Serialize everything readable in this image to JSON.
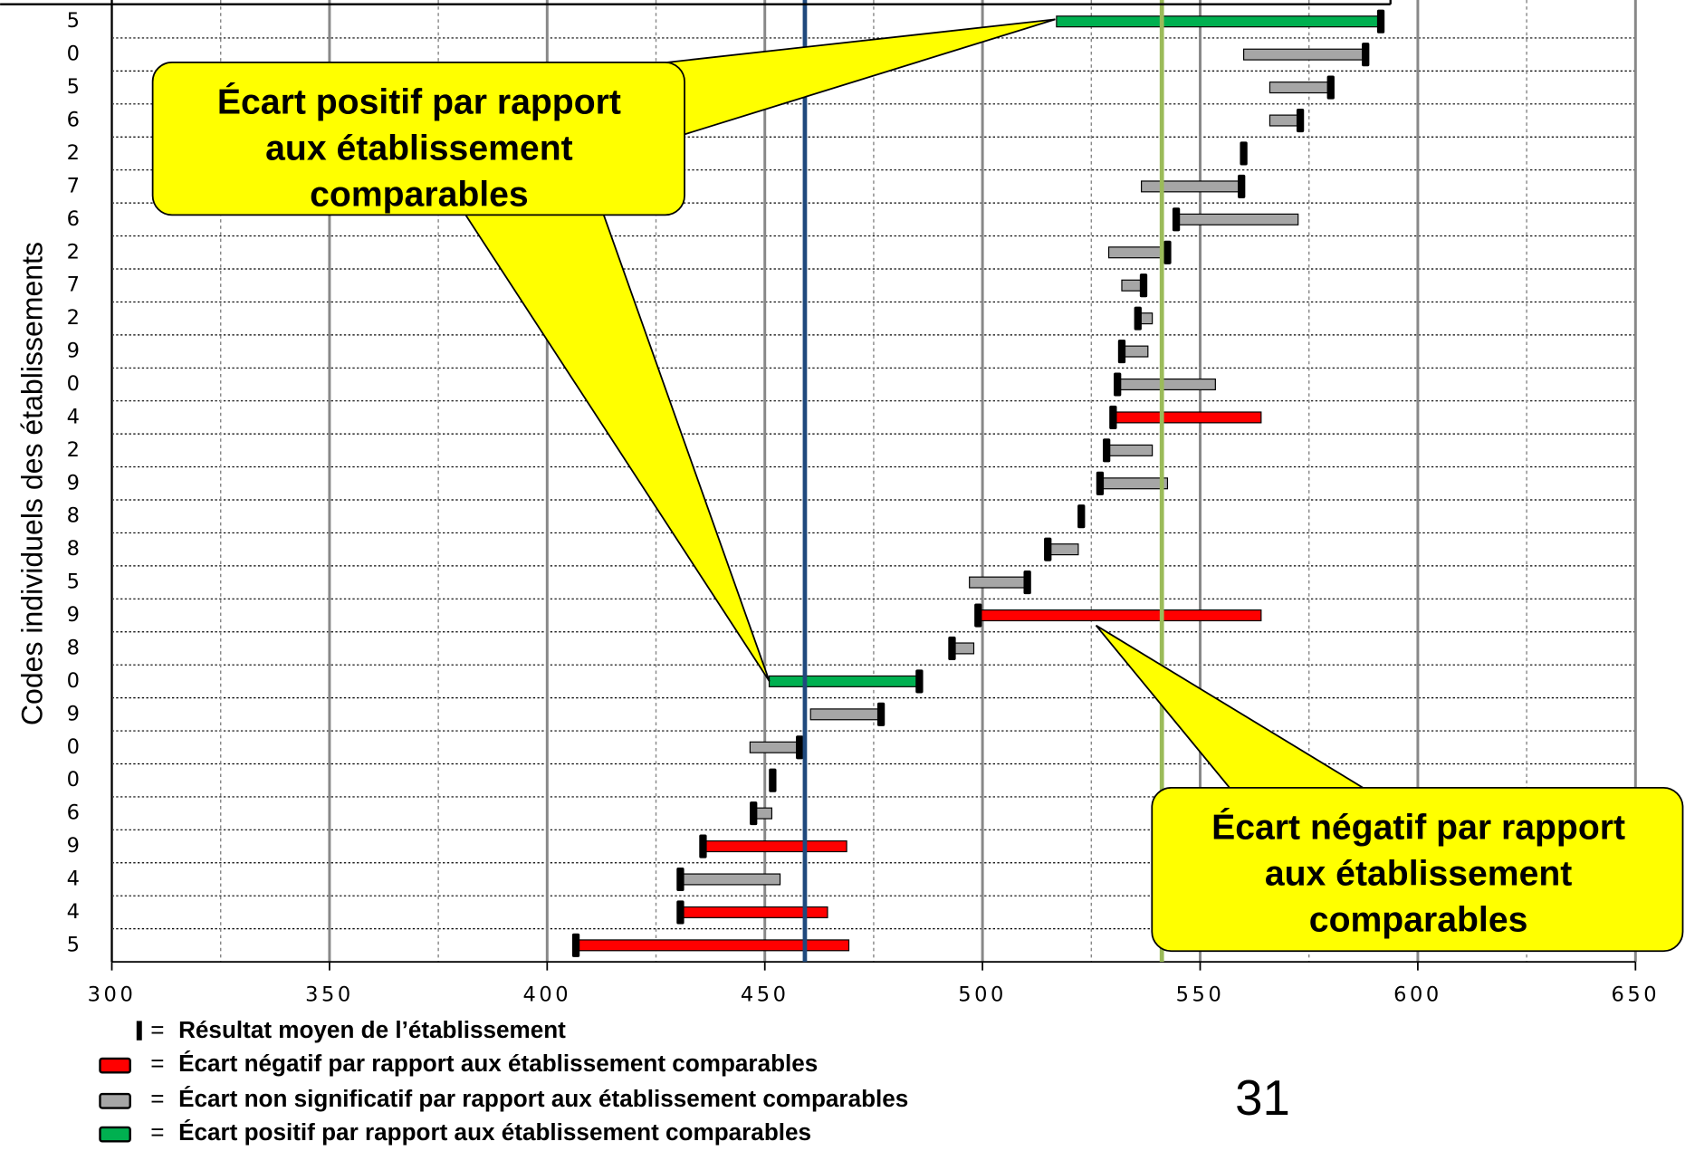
{
  "chart_data": {
    "type": "range_bar",
    "y_label": "Codes individuels des établissements",
    "categories": [
      "5",
      "0",
      "5",
      "6",
      "2",
      "7",
      "6",
      "2",
      "7",
      "2",
      "9",
      "0",
      "4",
      "2",
      "9",
      "8",
      "8",
      "5",
      "9",
      "8",
      "0",
      "9",
      "0",
      "0",
      "6",
      "9",
      "4",
      "4",
      "5"
    ],
    "low": [
      517,
      560,
      566,
      566,
      560,
      536.5,
      544.5,
      529,
      532,
      535.7,
      532,
      531,
      530,
      528.5,
      527,
      522.7,
      515,
      497,
      499,
      493,
      451,
      460.5,
      446.6,
      451.8,
      447.4,
      435.8,
      430.6,
      430.6,
      406.6
    ],
    "high": [
      591.5,
      588,
      580,
      573,
      560,
      559.5,
      572.5,
      542.5,
      537,
      539,
      538,
      553.5,
      564,
      539,
      542.5,
      522.7,
      522,
      510.3,
      564,
      498,
      485.5,
      476.7,
      458,
      451.8,
      451.6,
      468.8,
      453.5,
      464.4,
      469.3
    ],
    "mean": [
      591.5,
      588,
      580,
      573,
      560,
      559.5,
      544.5,
      542.5,
      537,
      535.7,
      532,
      531,
      530,
      528.5,
      527,
      522.7,
      515,
      510.3,
      499,
      493,
      485.5,
      476.7,
      458,
      451.8,
      447.4,
      435.8,
      430.6,
      430.6,
      406.6
    ],
    "colors": [
      "#00b050",
      "#a6a6a6",
      "#a6a6a6",
      "#a6a6a6",
      "#a6a6a6",
      "#a6a6a6",
      "#a6a6a6",
      "#a6a6a6",
      "#a6a6a6",
      "#a6a6a6",
      "#a6a6a6",
      "#a6a6a6",
      "#ff0000",
      "#a6a6a6",
      "#a6a6a6",
      "#a6a6a6",
      "#a6a6a6",
      "#a6a6a6",
      "#ff0000",
      "#a6a6a6",
      "#00b050",
      "#a6a6a6",
      "#a6a6a6",
      "#a6a6a6",
      "#a6a6a6",
      "#ff0000",
      "#a6a6a6",
      "#ff0000",
      "#ff0000"
    ],
    "mean_color": "#000000",
    "reference_lines": [
      {
        "value": 459.2,
        "color": "#1f497d"
      },
      {
        "value": 541.2,
        "color": "#9bbb59"
      }
    ],
    "xlim": [
      300,
      650
    ],
    "xticks": [
      300,
      350,
      400,
      450,
      500,
      550,
      600,
      650
    ],
    "minor_xticks": [
      325,
      375,
      425,
      475,
      525,
      575,
      625
    ],
    "grid": true,
    "legend_separator": "=",
    "legend": [
      {
        "text": "Résultat moyen de l’établissement",
        "color": "#000000"
      },
      {
        "text": "Écart négatif par rapport aux établissement comparables",
        "color": "#ff0000"
      },
      {
        "text": "Écart non significatif par rapport aux établissement comparables",
        "color": "#a6a6a6"
      },
      {
        "text": "Écart positif par rapport aux établissement comparables",
        "color": "#00b050"
      }
    ],
    "annotations": [
      {
        "lines": [
          "Écart positif par rapport",
          "aux établissement",
          "comparables"
        ]
      },
      {
        "lines": [
          "Écart négatif par rapport",
          "aux établissement",
          "comparables"
        ]
      }
    ],
    "page_number": "31"
  }
}
